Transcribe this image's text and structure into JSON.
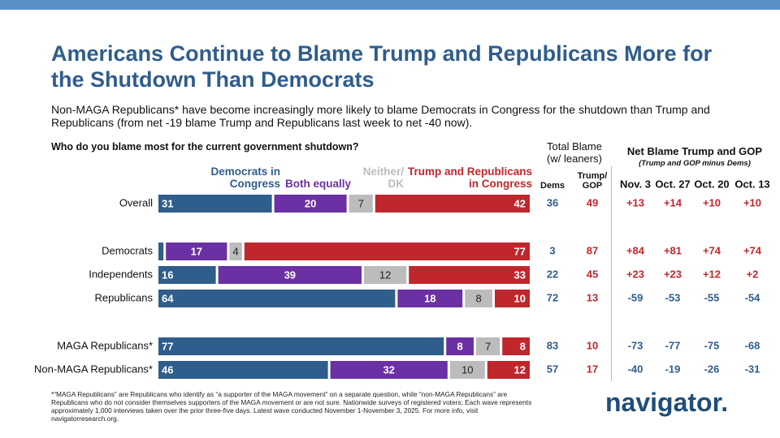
{
  "title": "Americans Continue to Blame Trump and Republicans More for the Shutdown Than Democrats",
  "subtitle": "Non-MAGA Republicans* have become increasingly more likely to blame Democrats in Congress for the shutdown than Trump and Republicans (from net -19 blame Trump and Republicans last week to net -40 now).",
  "chart_data": {
    "type": "bar",
    "stacked": true,
    "orientation": "horizontal",
    "question": "Who do you blame most for the current government shutdown?",
    "categories": [
      "Overall",
      "Democrats",
      "Independents",
      "Republicans",
      "MAGA Republicans*",
      "Non-MAGA Republicans*"
    ],
    "xlim": [
      0,
      100
    ],
    "series": [
      {
        "name": "Democrats in Congress",
        "color": "#2f5d8c",
        "values": [
          31,
          2,
          16,
          64,
          77,
          46
        ],
        "value_labels": [
          "31",
          null,
          "16",
          "64",
          "77",
          "46"
        ]
      },
      {
        "name": "Both equally",
        "color": "#6b30a3",
        "values": [
          20,
          17,
          39,
          18,
          8,
          32
        ]
      },
      {
        "name": "Neither/\nDK",
        "color": "#bcbcbc",
        "values": [
          7,
          4,
          12,
          8,
          7,
          10
        ]
      },
      {
        "name": "Trump and Republicans\nin Congress",
        "color": "#c0272d",
        "values": [
          42,
          77,
          33,
          10,
          8,
          12
        ]
      }
    ]
  },
  "total_blame": {
    "title": "Total Blame\n(w/ leaners)",
    "columns": [
      "Dems",
      "Trump/\nGOP"
    ],
    "rows": [
      [
        36,
        49
      ],
      [
        3,
        87
      ],
      [
        22,
        45
      ],
      [
        72,
        13
      ],
      [
        83,
        10
      ],
      [
        57,
        17
      ]
    ]
  },
  "net_blame": {
    "title": "Net Blame Trump and GOP",
    "subtitle": "(Trump and GOP minus Dems)",
    "columns": [
      "Nov. 3",
      "Oct. 27",
      "Oct. 20",
      "Oct. 13"
    ],
    "rows": [
      [
        "+13",
        "+14",
        "+10",
        "+10"
      ],
      [
        "+84",
        "+81",
        "+74",
        "+74"
      ],
      [
        "+23",
        "+23",
        "+12",
        "+2"
      ],
      [
        "-59",
        "-53",
        "-55",
        "-54"
      ],
      [
        "-73",
        "-77",
        "-75",
        "-68"
      ],
      [
        "-40",
        "-19",
        "-26",
        "-31"
      ]
    ]
  },
  "footnote": "*“MAGA Republicans” are Republicans who identify as “a supporter of the MAGA movement” on a separate question, while “non-MAGA Republicans” are Republicans who do not consider themselves supporters of the MAGA movement or are not sure. Nationwide surveys of registered voters; Each wave represents approximately 1,000 interviews taken over the prior three-five days. Latest wave conducted November 1-November 3, 2025. For more info, visit navigatorresearch.org.",
  "logo": "navigator."
}
